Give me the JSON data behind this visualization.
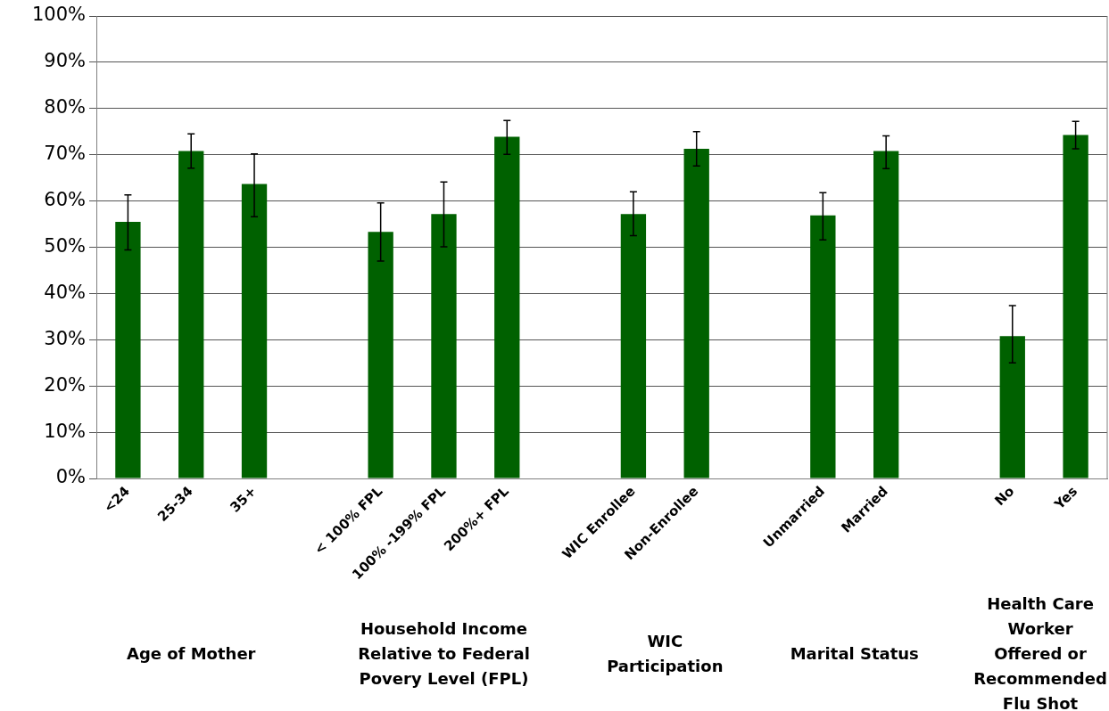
{
  "chart_data": {
    "type": "bar",
    "categories": [
      "<24",
      "25-34",
      "35+",
      null,
      "< 100% FPL",
      "100% -199% FPL",
      "200%+ FPL",
      null,
      "WIC Enrollee",
      "Non-Enrollee",
      null,
      "Unmarried",
      "Married",
      null,
      "No",
      "Yes"
    ],
    "values": [
      55.5,
      70.8,
      63.7,
      null,
      53.3,
      57.2,
      73.9,
      null,
      57.2,
      71.3,
      null,
      56.9,
      70.8,
      null,
      30.8,
      74.3
    ],
    "errors": [
      [
        49.4,
        61.3
      ],
      [
        67.1,
        74.5
      ],
      [
        56.6,
        70.2
      ],
      null,
      [
        47.0,
        59.6
      ],
      [
        50.1,
        64.1
      ],
      [
        70.1,
        77.4
      ],
      null,
      [
        52.5,
        62.0
      ],
      [
        67.6,
        75.0
      ],
      null,
      [
        51.6,
        61.8
      ],
      [
        67.0,
        74.1
      ],
      null,
      [
        25.0,
        37.4
      ],
      [
        71.3,
        77.2
      ]
    ],
    "color": "#006100",
    "ylim": [
      0,
      100
    ],
    "yticks": [
      {
        "value": 0,
        "label": "0%"
      },
      {
        "value": 10,
        "label": "10%"
      },
      {
        "value": 20,
        "label": "20%"
      },
      {
        "value": 30,
        "label": "30%"
      },
      {
        "value": 40,
        "label": "40%"
      },
      {
        "value": 50,
        "label": "50%"
      },
      {
        "value": 60,
        "label": "60%"
      },
      {
        "value": 70,
        "label": "70%"
      },
      {
        "value": 80,
        "label": "80%"
      },
      {
        "value": 90,
        "label": "90%"
      },
      {
        "value": 100,
        "label": "100%"
      }
    ],
    "grid": "y",
    "legend": false,
    "annotations": [
      "Age of Mother",
      "Household Income Relative to Federal Povery Level (FPL)",
      "WIC Participation",
      "Marital Status",
      "Health Care Worker Offered or Recommended Flu Shot"
    ]
  }
}
